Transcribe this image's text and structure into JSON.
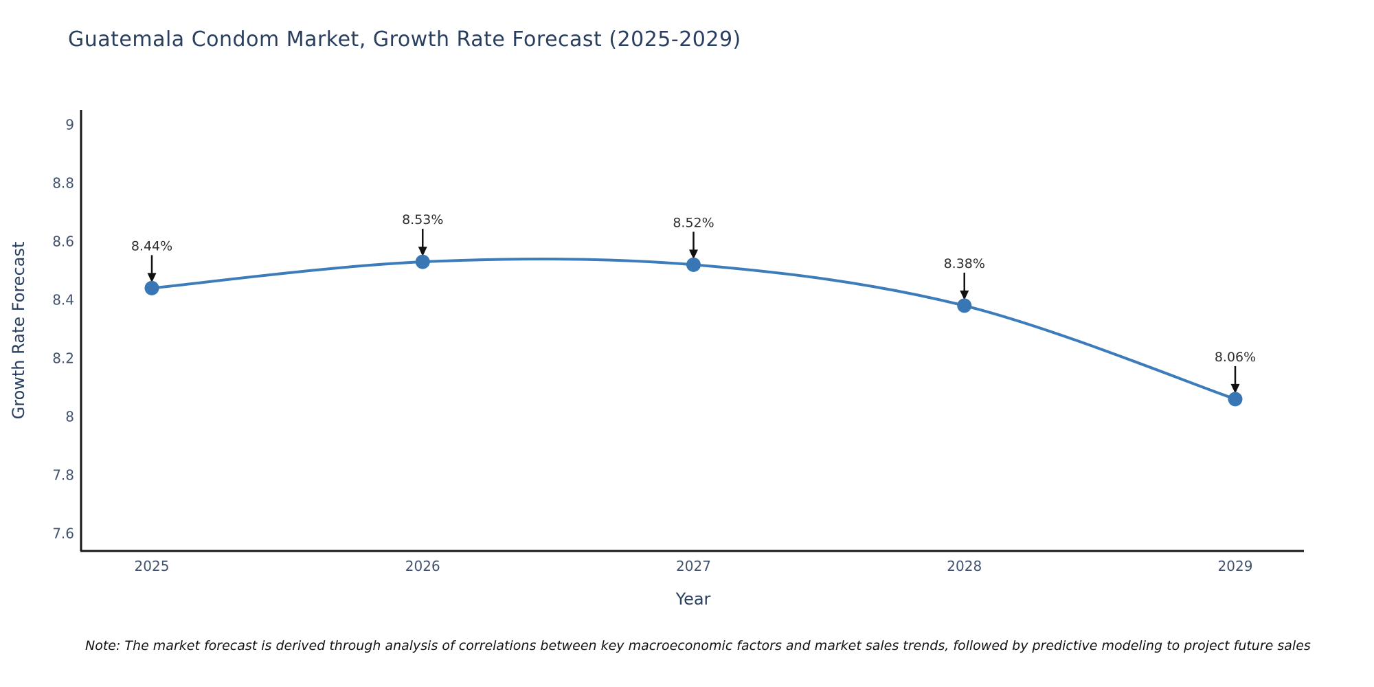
{
  "chart_data": {
    "type": "line",
    "title": "Guatemala Condom Market, Growth Rate Forecast (2025-2029)",
    "xlabel": "Year",
    "ylabel": "Growth Rate Forecast",
    "x": [
      "2025",
      "2026",
      "2027",
      "2028",
      "2029"
    ],
    "values": [
      8.44,
      8.53,
      8.52,
      8.38,
      8.06
    ],
    "point_labels": [
      "8.44%",
      "8.53%",
      "8.52%",
      "8.38%",
      "8.06%"
    ],
    "ylim": [
      7.54,
      9.05
    ],
    "yticks": [
      9,
      8.8,
      8.6,
      8.4,
      8.2,
      8,
      7.8,
      7.6
    ],
    "ytick_labels": [
      "9",
      "8.8",
      "8.6",
      "8.4",
      "8.2",
      "8",
      "7.8",
      "7.6"
    ],
    "line_shape": "spline",
    "grid": false,
    "legend": "none",
    "colors": {
      "line": "#3d7cba",
      "marker": "#3876b4",
      "annotation_text": "#2e2e2e",
      "arrow": "#111111",
      "axis_line": "#161616",
      "tick_label": "#42526e",
      "title": "#2a3f5f",
      "background": "#ffffff"
    }
  },
  "note": {
    "text": "Note: The market forecast is derived through analysis of correlations between key macroeconomic factors and market sales trends, followed by predictive modeling to project future sales"
  }
}
